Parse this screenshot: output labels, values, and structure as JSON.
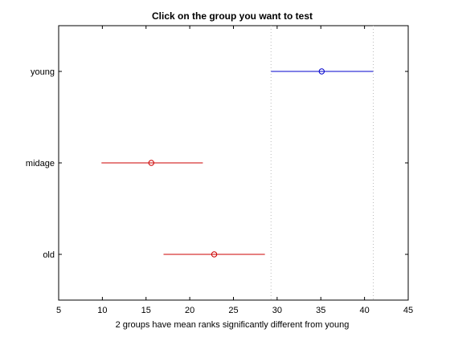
{
  "chart_data": {
    "type": "interval",
    "title": "Click on the group you want to test",
    "xlabel": "2 groups have mean ranks significantly different from young",
    "ylabel": "",
    "xlim": [
      5,
      45
    ],
    "xticks": [
      5,
      10,
      15,
      20,
      25,
      30,
      35,
      40,
      45
    ],
    "categories": [
      "young",
      "midage",
      "old"
    ],
    "selected_group": "young",
    "reference_lines": [
      29.3,
      41.0
    ],
    "grid": false,
    "series": [
      {
        "label": "young",
        "mean": 35.1,
        "lower": 29.3,
        "upper": 41.0,
        "color": "#0000cc"
      },
      {
        "label": "midage",
        "mean": 15.6,
        "lower": 9.9,
        "upper": 21.5,
        "color": "#cc0000"
      },
      {
        "label": "old",
        "mean": 22.8,
        "lower": 17.0,
        "upper": 28.6,
        "color": "#cc0000"
      }
    ]
  }
}
